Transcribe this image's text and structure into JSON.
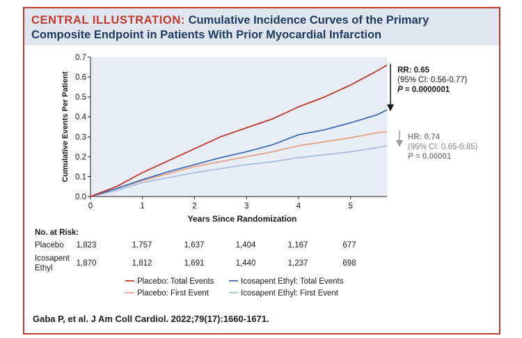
{
  "header": {
    "tag": "CENTRAL ILLUSTRATION:",
    "title_line1": "Cumulative Incidence Curves of the Primary",
    "title_line2": "Composite Endpoint in Patients With Prior Myocardial Infarction"
  },
  "chart_data": {
    "type": "line",
    "xlabel": "Years Since Randomization",
    "ylabel": "Cumulative Events Per Patient",
    "xlim": [
      0,
      5.7
    ],
    "ylim": [
      0,
      0.7
    ],
    "x_ticks": [
      "0",
      "1",
      "2",
      "3",
      "4",
      "5"
    ],
    "y_ticks": [
      "0.0",
      "0.1",
      "0.2",
      "0.3",
      "0.4",
      "0.5",
      "0.6",
      "0.7"
    ],
    "series": [
      {
        "name": "Placebo: Total Events",
        "color": "#c0392b",
        "x": [
          0,
          0.5,
          1,
          1.5,
          2,
          2.5,
          3,
          3.5,
          4,
          4.5,
          5,
          5.5,
          5.7
        ],
        "y": [
          0,
          0.05,
          0.12,
          0.18,
          0.24,
          0.3,
          0.345,
          0.39,
          0.45,
          0.5,
          0.56,
          0.63,
          0.66
        ]
      },
      {
        "name": "Icosapent Ethyl: Total Events",
        "color": "#3b6eb5",
        "x": [
          0,
          0.5,
          1,
          1.5,
          2,
          2.5,
          3,
          3.5,
          4,
          4.5,
          5,
          5.5,
          5.7
        ],
        "y": [
          0,
          0.04,
          0.085,
          0.125,
          0.16,
          0.195,
          0.225,
          0.26,
          0.31,
          0.335,
          0.37,
          0.41,
          0.435
        ]
      },
      {
        "name": "Placebo: First Event",
        "color": "#e8a07e",
        "x": [
          0,
          0.5,
          1,
          1.5,
          2,
          2.5,
          3,
          3.5,
          4,
          4.5,
          5,
          5.5,
          5.7
        ],
        "y": [
          0,
          0.04,
          0.08,
          0.115,
          0.15,
          0.175,
          0.2,
          0.225,
          0.255,
          0.275,
          0.295,
          0.32,
          0.325
        ]
      },
      {
        "name": "Icosapent Ethyl: First Event",
        "color": "#a9bfe0",
        "x": [
          0,
          0.5,
          1,
          1.5,
          2,
          2.5,
          3,
          3.5,
          4,
          4.5,
          5,
          5.5,
          5.7
        ],
        "y": [
          0,
          0.03,
          0.07,
          0.095,
          0.12,
          0.14,
          0.16,
          0.175,
          0.195,
          0.21,
          0.225,
          0.245,
          0.255
        ]
      }
    ],
    "annotations": {
      "total": {
        "line1": "RR: 0.65",
        "line2": "(95% CI: 0.56-0.77)",
        "line3_p": "P",
        "line3_val": " = 0.0000001",
        "color": "#1a1a1a"
      },
      "first": {
        "line1": "HR: 0.74",
        "line2": "(95% CI: 0.65-0.85)",
        "line3_p": "P",
        "line3_val": " = 0.00001",
        "color": "#8a8a8a"
      }
    },
    "risk_table": {
      "title": "No. at Risk:",
      "rows": [
        {
          "label": [
            "Placebo"
          ],
          "values": [
            "1,823",
            "1,757",
            "1,637",
            "1,404",
            "1,167",
            "677"
          ]
        },
        {
          "label": [
            "Icosapent",
            "Ethyl"
          ],
          "values": [
            "1,870",
            "1,812",
            "1,691",
            "1,440",
            "1,237",
            "698"
          ]
        }
      ]
    }
  },
  "citation": "Gaba P, et al. J Am Coll Cardiol. 2022;79(17):1660-1671."
}
